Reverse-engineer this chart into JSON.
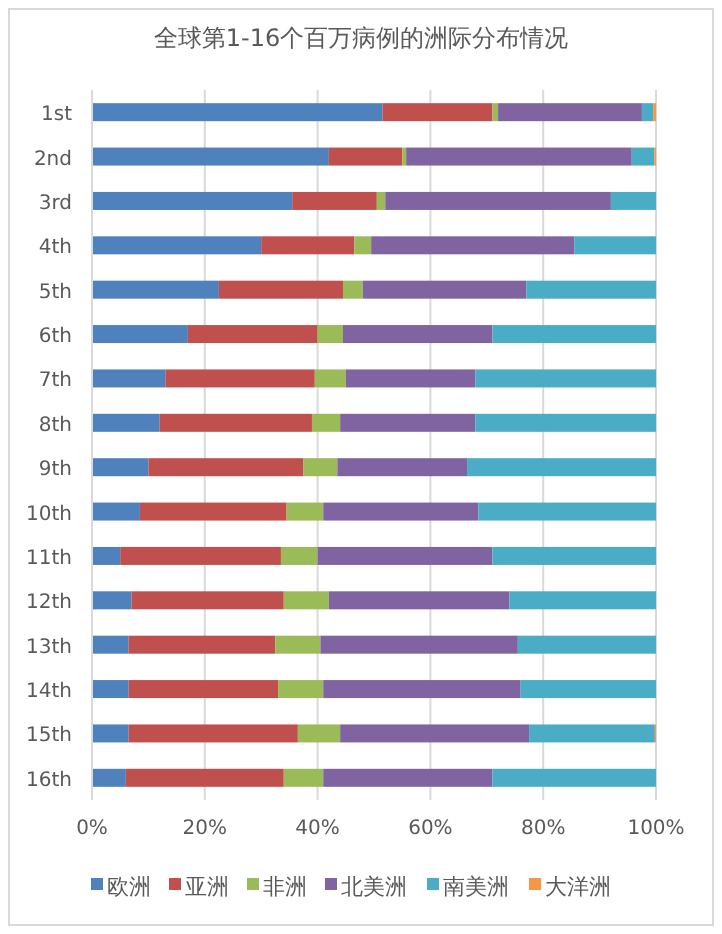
{
  "chart_data": {
    "type": "bar",
    "orientation": "horizontal",
    "stacked": true,
    "title": "全球第1-16个百万病例的洲际分布情况",
    "categories": [
      "1st",
      "2nd",
      "3rd",
      "4th",
      "5th",
      "6th",
      "7th",
      "8th",
      "9th",
      "10th",
      "11th",
      "12th",
      "13th",
      "14th",
      "15th",
      "16th"
    ],
    "series": [
      {
        "name": "欧洲",
        "color": "#4f81bd",
        "values": [
          51.5,
          42,
          35.5,
          30,
          22.5,
          17,
          13,
          12,
          10,
          8.5,
          5,
          7,
          6.5,
          6.5,
          6.5,
          6
        ]
      },
      {
        "name": "亚洲",
        "color": "#c0504d",
        "values": [
          19.5,
          13,
          15,
          16.5,
          22,
          23,
          26.5,
          27,
          27.5,
          26,
          28.5,
          27,
          26,
          26.5,
          30,
          28
        ]
      },
      {
        "name": "非洲",
        "color": "#9bbb59",
        "values": [
          1,
          0.7,
          1.5,
          3,
          3.5,
          4.5,
          5.5,
          5,
          6,
          6.5,
          6.5,
          8,
          8,
          8,
          7.5,
          7
        ]
      },
      {
        "name": "北美洲",
        "color": "#8064a2",
        "values": [
          25.5,
          40,
          40,
          36,
          29,
          26.5,
          23,
          24,
          23,
          27.5,
          31,
          32,
          35,
          35,
          33.5,
          30
        ]
      },
      {
        "name": "南美洲",
        "color": "#4bacc6",
        "values": [
          2,
          4,
          8,
          14.5,
          23,
          29,
          32,
          32,
          33.5,
          31.5,
          29,
          26,
          24.5,
          24,
          22.3,
          29
        ]
      },
      {
        "name": "大洋洲",
        "color": "#f79646",
        "values": [
          0.5,
          0.3,
          0,
          0,
          0,
          0,
          0,
          0,
          0,
          0,
          0,
          0,
          0,
          0,
          0.2,
          0
        ]
      }
    ],
    "xlim": [
      0,
      100
    ],
    "xticks": [
      {
        "value": 0,
        "label": "0%"
      },
      {
        "value": 20,
        "label": "20%"
      },
      {
        "value": 40,
        "label": "40%"
      },
      {
        "value": 60,
        "label": "60%"
      },
      {
        "value": 80,
        "label": "80%"
      },
      {
        "value": 100,
        "label": "100%"
      }
    ],
    "grid": "x",
    "legend": "bottom"
  }
}
